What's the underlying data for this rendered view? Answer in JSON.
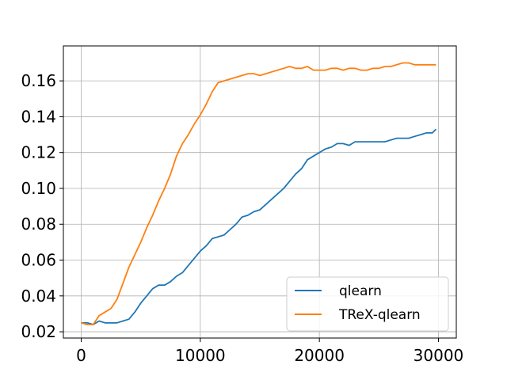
{
  "chart_data": {
    "type": "line",
    "title": "",
    "xlabel": "",
    "ylabel": "",
    "xlim": [
      -1500,
      31500
    ],
    "ylim": [
      0.0165,
      0.1795
    ],
    "xticks": [
      0,
      10000,
      20000,
      30000
    ],
    "xtick_labels": [
      "0",
      "10000",
      "20000",
      "30000"
    ],
    "yticks": [
      0.02,
      0.04,
      0.06,
      0.08,
      0.1,
      0.12,
      0.14,
      0.16
    ],
    "ytick_labels": [
      "0.02",
      "0.04",
      "0.06",
      "0.08",
      "0.10",
      "0.12",
      "0.14",
      "0.16"
    ],
    "grid": true,
    "legend_position": "lower-right",
    "series": [
      {
        "name": "qlearn",
        "color": "#1f77b4",
        "x": [
          0,
          500,
          1000,
          1500,
          2000,
          2500,
          3000,
          3500,
          4000,
          4500,
          5000,
          5500,
          6000,
          6500,
          7000,
          7500,
          8000,
          8500,
          9000,
          9500,
          10000,
          10500,
          11000,
          11500,
          12000,
          12500,
          13000,
          13500,
          14000,
          14500,
          15000,
          15500,
          16000,
          16500,
          17000,
          17500,
          18000,
          18500,
          19000,
          19500,
          20000,
          20500,
          21000,
          21500,
          22000,
          22500,
          23000,
          23500,
          24000,
          24500,
          25000,
          25500,
          26000,
          26500,
          27000,
          27500,
          28000,
          28500,
          29000,
          29500,
          29800
        ],
        "values": [
          0.025,
          0.025,
          0.024,
          0.026,
          0.025,
          0.025,
          0.025,
          0.026,
          0.027,
          0.031,
          0.036,
          0.04,
          0.044,
          0.046,
          0.046,
          0.048,
          0.051,
          0.053,
          0.057,
          0.061,
          0.065,
          0.068,
          0.072,
          0.073,
          0.074,
          0.077,
          0.08,
          0.084,
          0.085,
          0.087,
          0.088,
          0.091,
          0.094,
          0.097,
          0.1,
          0.104,
          0.108,
          0.111,
          0.116,
          0.118,
          0.12,
          0.122,
          0.123,
          0.125,
          0.125,
          0.124,
          0.126,
          0.126,
          0.126,
          0.126,
          0.126,
          0.126,
          0.127,
          0.128,
          0.128,
          0.128,
          0.129,
          0.13,
          0.131,
          0.131,
          0.133
        ]
      },
      {
        "name": "TReX-qlearn",
        "color": "#ff7f0e",
        "x": [
          0,
          500,
          1000,
          1500,
          2000,
          2500,
          3000,
          3500,
          4000,
          4500,
          5000,
          5500,
          6000,
          6500,
          7000,
          7500,
          8000,
          8500,
          9000,
          9500,
          10000,
          10500,
          11000,
          11500,
          12000,
          12500,
          13000,
          13500,
          14000,
          14500,
          15000,
          15500,
          16000,
          16500,
          17000,
          17500,
          18000,
          18500,
          19000,
          19500,
          20000,
          20500,
          21000,
          21500,
          22000,
          22500,
          23000,
          23500,
          24000,
          24500,
          25000,
          25500,
          26000,
          26500,
          27000,
          27500,
          28000,
          28500,
          29000,
          29500,
          29800
        ],
        "values": [
          0.025,
          0.024,
          0.024,
          0.029,
          0.031,
          0.033,
          0.038,
          0.047,
          0.056,
          0.063,
          0.07,
          0.078,
          0.085,
          0.093,
          0.1,
          0.108,
          0.118,
          0.125,
          0.13,
          0.136,
          0.141,
          0.147,
          0.154,
          0.159,
          0.16,
          0.161,
          0.162,
          0.163,
          0.164,
          0.164,
          0.163,
          0.164,
          0.165,
          0.166,
          0.167,
          0.168,
          0.167,
          0.167,
          0.168,
          0.166,
          0.166,
          0.166,
          0.167,
          0.167,
          0.166,
          0.167,
          0.167,
          0.166,
          0.166,
          0.167,
          0.167,
          0.168,
          0.168,
          0.169,
          0.17,
          0.17,
          0.169,
          0.169,
          0.169,
          0.169,
          0.169
        ]
      }
    ]
  }
}
